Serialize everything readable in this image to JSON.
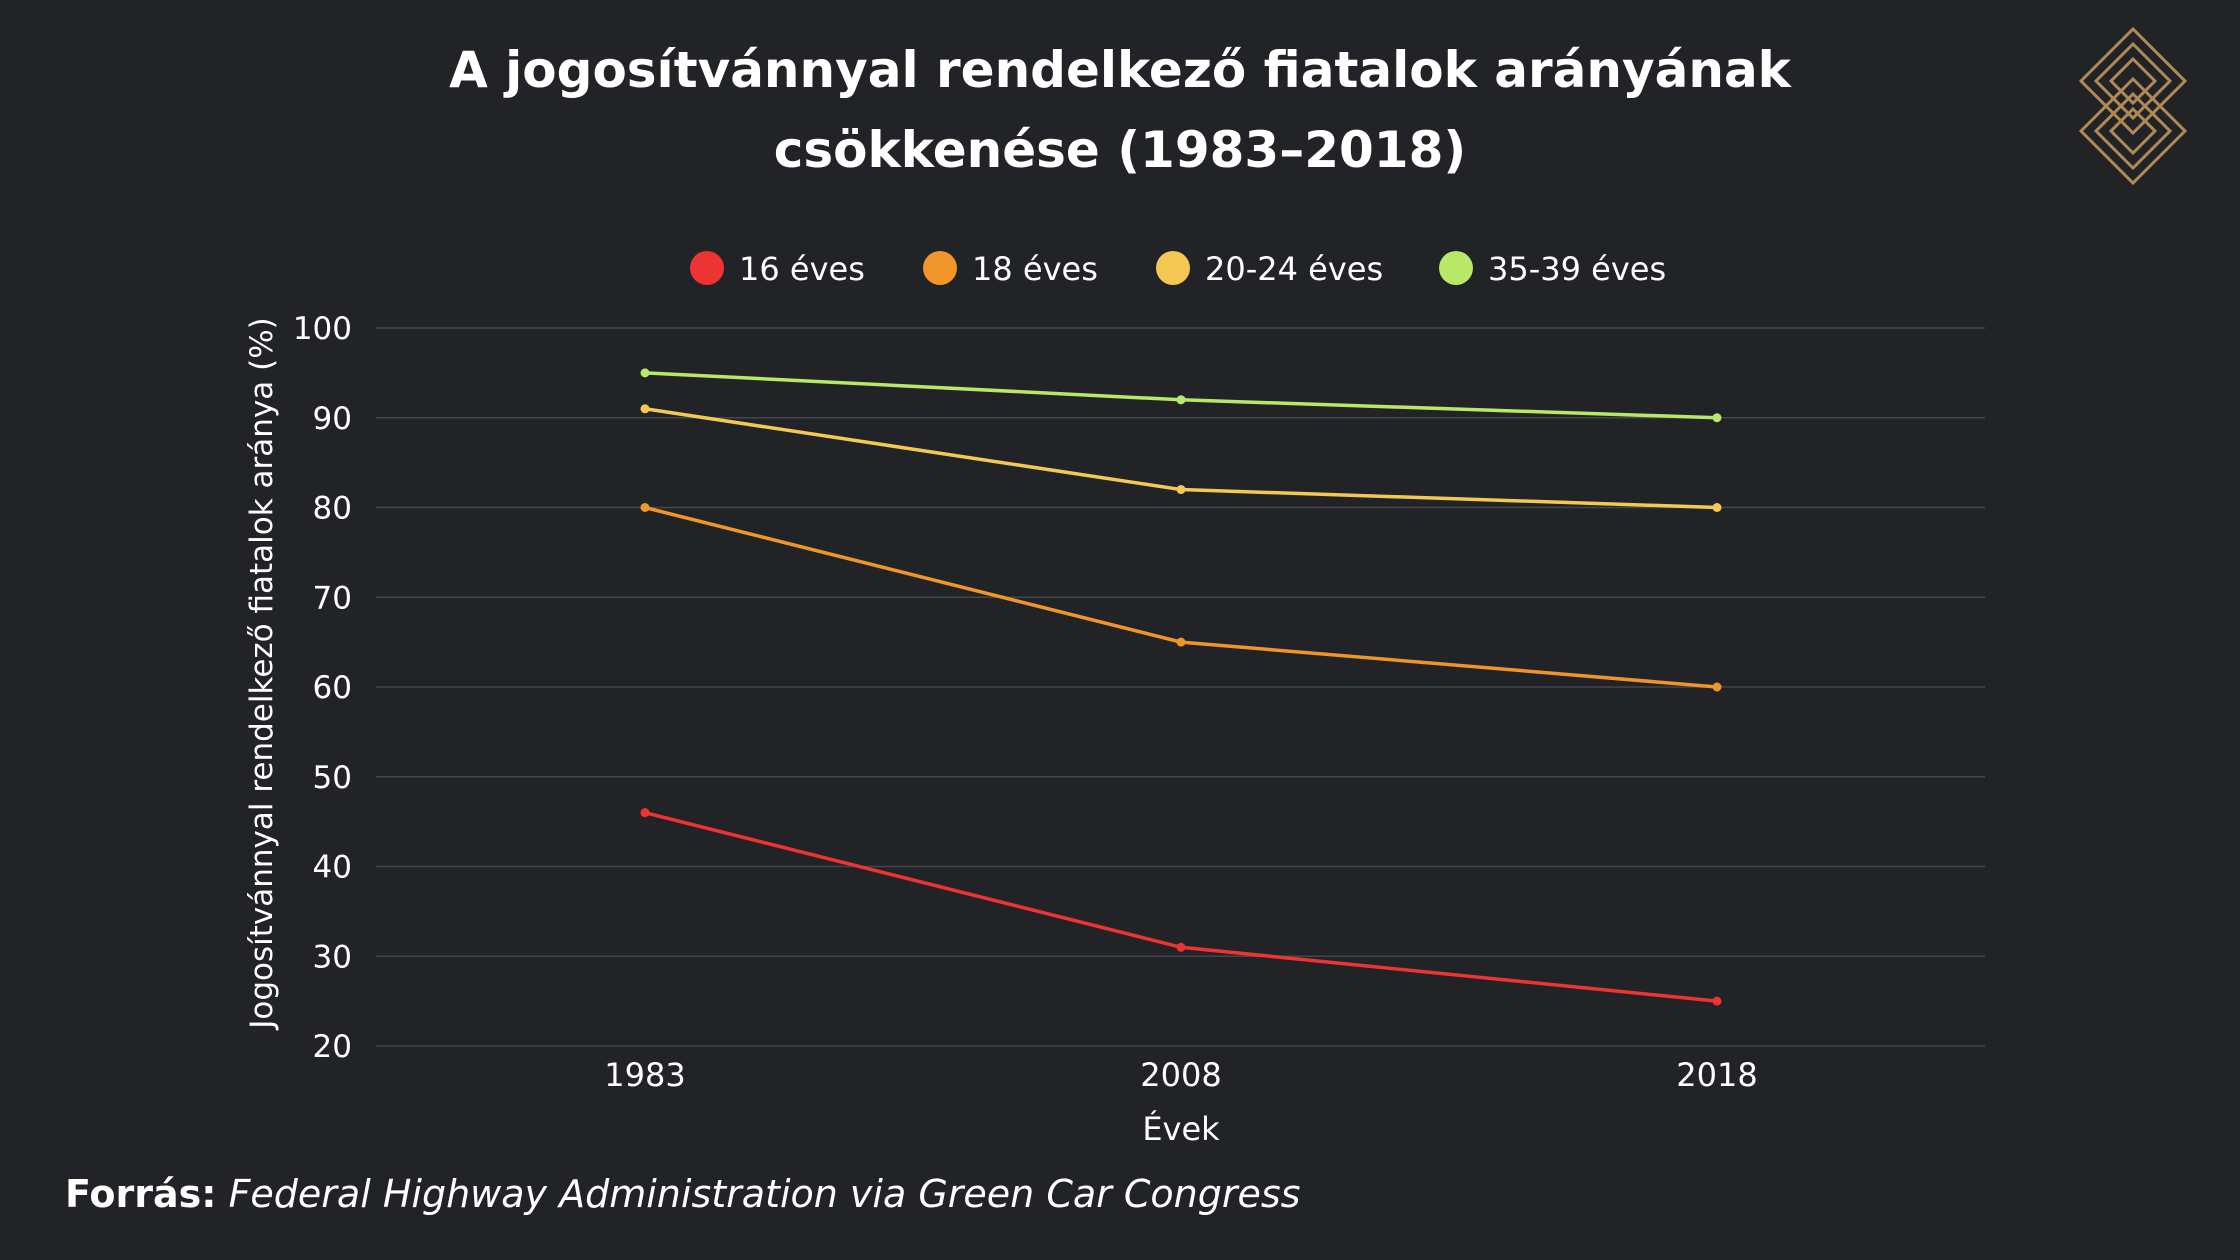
{
  "header": {
    "title_line1": "A jogosítvánnyal rendelkező fiatalok arányának",
    "title_line2": "csökkenése (1983–2018)"
  },
  "logo": {
    "icon": "gold-s-maze-logo-icon",
    "color": "#b08a55"
  },
  "footer": {
    "source_label": "Forrás:",
    "source_text": "Federal Highway Administration via Green Car Congress"
  },
  "chart_data": {
    "type": "line",
    "title": "A jogosítvánnyal rendelkező fiatalok arányának csökkenése (1983–2018)",
    "xlabel": "Évek",
    "ylabel": "Jogosítvánnyal rendelkező fiatalok aránya (%)",
    "categories": [
      "1983",
      "2008",
      "2018"
    ],
    "ylim": [
      20,
      100
    ],
    "yticks": [
      20,
      30,
      40,
      50,
      60,
      70,
      80,
      90,
      100
    ],
    "grid": true,
    "legend_position": "top",
    "series": [
      {
        "name": "16 éves",
        "color": "#ee3333",
        "values": [
          46,
          31,
          25
        ]
      },
      {
        "name": "18 éves",
        "color": "#f0952a",
        "values": [
          80,
          65,
          60
        ]
      },
      {
        "name": "20-24 éves",
        "color": "#f5c853",
        "values": [
          91,
          82,
          80
        ]
      },
      {
        "name": "35-39 éves",
        "color": "#b8e868",
        "values": [
          95,
          92,
          90
        ]
      }
    ]
  }
}
